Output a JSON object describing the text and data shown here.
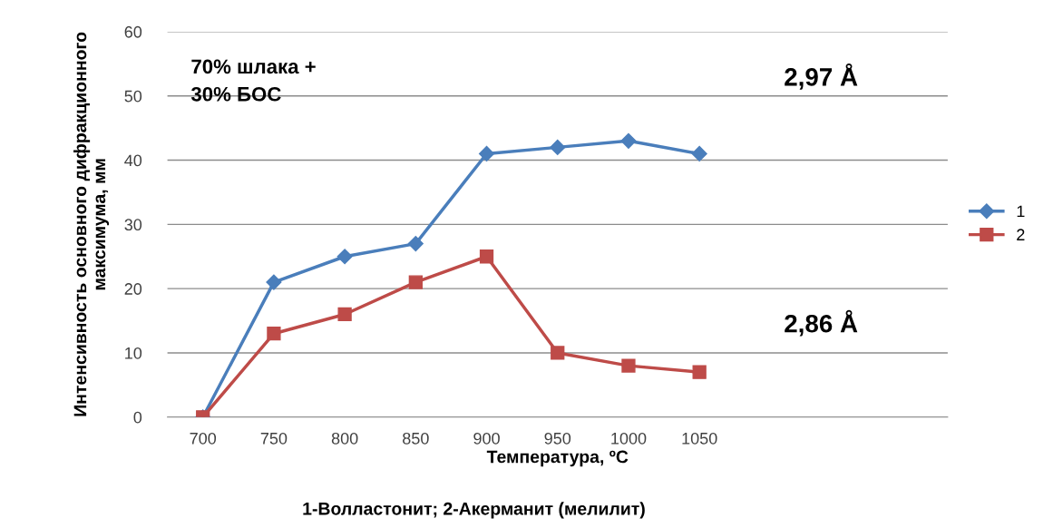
{
  "chart_data": {
    "type": "line",
    "xlabel": "Температура, ºC",
    "ylabel": "Интенсивность основного дифракционного максимума, мм",
    "categories": [
      "700",
      "750",
      "800",
      "850",
      "900",
      "950",
      "1000",
      "1050",
      null,
      null,
      null
    ],
    "series": [
      {
        "name": "1",
        "color": "#4a7ebb",
        "marker": "diamond",
        "values": [
          0,
          21,
          25,
          27,
          41,
          42,
          43,
          41,
          null,
          null,
          null
        ]
      },
      {
        "name": "2",
        "color": "#be4b48",
        "marker": "square",
        "values": [
          0,
          13,
          16,
          21,
          25,
          10,
          8,
          7,
          null,
          null,
          null
        ]
      }
    ],
    "ylim": [
      0,
      60
    ],
    "yticks": [
      0,
      10,
      20,
      30,
      40,
      50,
      60
    ],
    "grid": "y",
    "legend": "right",
    "line_style": "solid",
    "annotations": [
      "70% шлака +\n30% БОС",
      "2,97 Å",
      "2,86 Å",
      "1-Волластонит; 2-Акерманит (мелилит)"
    ]
  }
}
